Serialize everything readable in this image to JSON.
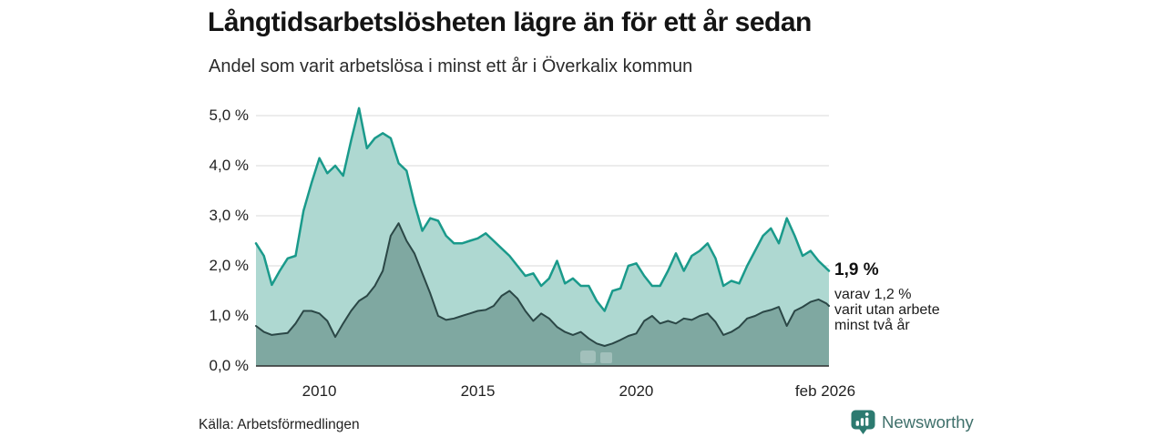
{
  "header": {
    "title": "Långtidsarbetslösheten lägre än för ett år sedan",
    "subtitle": "Andel som varit arbetslösa i minst ett år i Överkalix kommun"
  },
  "annotation": {
    "value": "1,9 %",
    "line1": "varav 1,2 %",
    "line2": "varit utan arbete",
    "line3": "minst två år"
  },
  "footer": {
    "source": "Källa: Arbetsförmedlingen",
    "brand": "Newsworthy"
  },
  "colors": {
    "series1_line": "#1a9a8b",
    "series1_fill": "#aed8d1",
    "series2_line": "#2b4746",
    "series2_fill": "#7fa8a1",
    "gridline": "#d9d9d9",
    "axis": "#2f2f2f",
    "brand_teal": "#2c7a70",
    "watermark": "rgba(255,255,255,0.28)"
  },
  "chart_data": {
    "type": "area",
    "title": "Långtidsarbetslösheten lägre än för ett år sedan",
    "subtitle": "Andel som varit arbetslösa i minst ett år i Överkalix kommun",
    "unit": "%",
    "grid": true,
    "xlim": [
      2008.0,
      2026.08
    ],
    "ylim": [
      0,
      5.0
    ],
    "x": [
      2008,
      2008.25,
      2008.5,
      2008.75,
      2009,
      2009.25,
      2009.5,
      2009.75,
      2010,
      2010.25,
      2010.5,
      2010.75,
      2011,
      2011.25,
      2011.5,
      2011.75,
      2012,
      2012.25,
      2012.5,
      2012.75,
      2013,
      2013.25,
      2013.5,
      2013.75,
      2014,
      2014.25,
      2014.5,
      2014.75,
      2015,
      2015.25,
      2015.5,
      2015.75,
      2016,
      2016.25,
      2016.5,
      2016.75,
      2017,
      2017.25,
      2017.5,
      2017.75,
      2018,
      2018.25,
      2018.5,
      2018.75,
      2019,
      2019.25,
      2019.5,
      2019.75,
      2020,
      2020.25,
      2020.5,
      2020.75,
      2021,
      2021.25,
      2021.5,
      2021.75,
      2022,
      2022.25,
      2022.5,
      2022.75,
      2023,
      2023.25,
      2023.5,
      2023.75,
      2024,
      2024.25,
      2024.5,
      2024.75,
      2025,
      2025.25,
      2025.5,
      2025.75,
      2026,
      2026.08
    ],
    "series": [
      {
        "name": "Andel som varit arbetslösa i minst ett år",
        "end_label": "1,9 %",
        "values": [
          2.45,
          2.2,
          1.62,
          1.9,
          2.15,
          2.2,
          3.1,
          3.65,
          4.15,
          3.85,
          4.0,
          3.8,
          4.5,
          5.15,
          4.35,
          4.55,
          4.65,
          4.55,
          4.05,
          3.9,
          3.25,
          2.7,
          2.95,
          2.9,
          2.6,
          2.45,
          2.45,
          2.5,
          2.55,
          2.65,
          2.5,
          2.35,
          2.2,
          2.0,
          1.8,
          1.85,
          1.6,
          1.75,
          2.1,
          1.65,
          1.75,
          1.6,
          1.6,
          1.3,
          1.1,
          1.5,
          1.55,
          2.0,
          2.05,
          1.8,
          1.6,
          1.6,
          1.9,
          2.25,
          1.9,
          2.2,
          2.3,
          2.45,
          2.15,
          1.6,
          1.7,
          1.65,
          2.0,
          2.3,
          2.6,
          2.75,
          2.45,
          2.95,
          2.6,
          2.2,
          2.3,
          2.1,
          1.95,
          1.9
        ]
      },
      {
        "name": "varav utan arbete minst två år",
        "end_label": "1,2 %",
        "values": [
          0.8,
          0.68,
          0.62,
          0.64,
          0.66,
          0.85,
          1.1,
          1.1,
          1.05,
          0.9,
          0.58,
          0.85,
          1.1,
          1.3,
          1.4,
          1.6,
          1.9,
          2.6,
          2.85,
          2.5,
          2.25,
          1.85,
          1.45,
          1.0,
          0.92,
          0.95,
          1.0,
          1.05,
          1.1,
          1.12,
          1.2,
          1.4,
          1.5,
          1.35,
          1.1,
          0.9,
          1.05,
          0.95,
          0.78,
          0.68,
          0.62,
          0.68,
          0.55,
          0.45,
          0.4,
          0.45,
          0.52,
          0.6,
          0.65,
          0.9,
          1.0,
          0.85,
          0.9,
          0.85,
          0.95,
          0.92,
          1.0,
          1.05,
          0.88,
          0.62,
          0.68,
          0.78,
          0.95,
          1.0,
          1.08,
          1.12,
          1.18,
          0.8,
          1.1,
          1.18,
          1.28,
          1.33,
          1.25,
          1.2
        ]
      }
    ],
    "y_ticks": [
      {
        "value": 5,
        "label": "5,0 %"
      },
      {
        "value": 4,
        "label": "4,0 %"
      },
      {
        "value": 3,
        "label": "3,0 %"
      },
      {
        "value": 2,
        "label": "2,0 %"
      },
      {
        "value": 1,
        "label": "1,0 %"
      },
      {
        "value": 0,
        "label": "0,0 %"
      }
    ],
    "x_ticks": [
      {
        "value": 2010,
        "label": "2010"
      },
      {
        "value": 2015,
        "label": "2015"
      },
      {
        "value": 2020,
        "label": "2020"
      },
      {
        "value": 2026.08,
        "label": "feb 2026"
      }
    ],
    "legend_position": "none"
  }
}
